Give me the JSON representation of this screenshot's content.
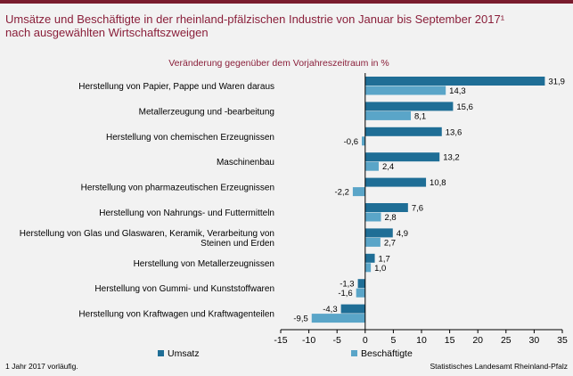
{
  "header": {
    "title_line1": "Umsätze und Beschäftigte in der rheinland-pfälzischen Industrie von Januar bis September 2017¹",
    "title_line2": "nach ausgewählten Wirtschaftszweigen"
  },
  "footer": {
    "note": "1 Jahr 2017 vorläufig.",
    "source": "Statistisches Landesamt Rheinland-Pfalz"
  },
  "colors": {
    "umsatz": "#1f6e96",
    "beschaeftigte": "#5aa5c8",
    "title": "#8a1f3a"
  },
  "chart_data": {
    "type": "bar",
    "orientation": "horizontal",
    "subtitle": "Veränderung gegenüber dem Vorjahreszeitraum in %",
    "categories": [
      [
        "Herstellung von Papier, Pappe und Waren daraus"
      ],
      [
        "Metallerzeugung und -bearbeitung"
      ],
      [
        "Herstellung von chemischen Erzeugnissen"
      ],
      [
        "Maschinenbau"
      ],
      [
        "Herstellung von pharmazeutischen Erzeugnissen"
      ],
      [
        "Herstellung von Nahrungs- und Futtermitteln"
      ],
      [
        "Herstellung von Glas und Glaswaren, Keramik, Verarbeitung von",
        "Steinen und Erden"
      ],
      [
        "Herstellung von Metallerzeugnissen"
      ],
      [
        "Herstellung von Gummi- und Kunststoffwaren"
      ],
      [
        "Herstellung von Kraftwagen und Kraftwagenteilen"
      ]
    ],
    "series": [
      {
        "name": "Umsatz",
        "values": [
          31.9,
          15.6,
          13.6,
          13.2,
          10.8,
          7.6,
          4.9,
          1.7,
          -1.3,
          -4.3
        ],
        "labels": [
          "31,9",
          "15,6",
          "13,6",
          "13,2",
          "10,8",
          "7,6",
          "4,9",
          "1,7",
          "-1,3",
          "-4,3"
        ]
      },
      {
        "name": "Beschäftigte",
        "values": [
          14.3,
          8.1,
          -0.6,
          2.4,
          -2.2,
          2.8,
          2.7,
          1.0,
          -1.6,
          -9.5
        ],
        "labels": [
          "14,3",
          "8,1",
          "-0,6",
          "2,4",
          "-2,2",
          "2,8",
          "2,7",
          "1,0",
          "-1,6",
          "-9,5"
        ]
      }
    ],
    "xlim": [
      -15,
      35
    ],
    "xticks": [
      -15,
      -10,
      -5,
      0,
      5,
      10,
      15,
      20,
      25,
      30,
      35
    ],
    "legend_position": "bottom"
  }
}
